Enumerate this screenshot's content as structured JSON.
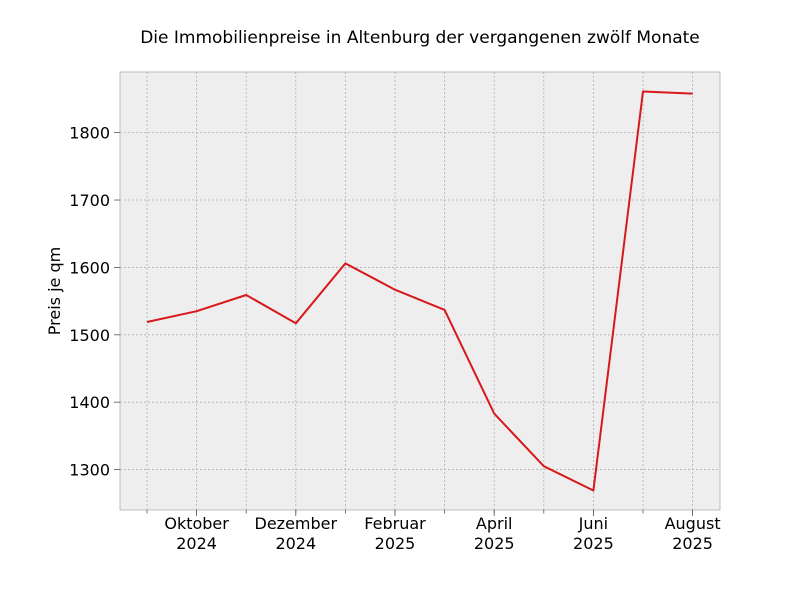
{
  "chart_data": {
    "type": "line",
    "title": "Die Immobilienpreise in Altenburg der vergangenen zwölf Monate",
    "xlabel": "",
    "ylabel": "Preis je qm",
    "x": [
      "2024-09",
      "2024-10",
      "2024-11",
      "2024-12",
      "2025-01",
      "2025-02",
      "2025-03",
      "2025-04",
      "2025-05",
      "2025-06",
      "2025-07",
      "2025-08"
    ],
    "series": [
      {
        "values": [
          1519,
          1535,
          1559,
          1517,
          1606,
          1567,
          1537,
          1383,
          1305,
          1269,
          1861,
          1858
        ],
        "color": "#d7191c"
      }
    ],
    "x_ticks": [
      {
        "index": 1,
        "line1": "Oktober",
        "line2": "2024"
      },
      {
        "index": 3,
        "line1": "Dezember",
        "line2": "2024"
      },
      {
        "index": 5,
        "line1": "Februar",
        "line2": "2025"
      },
      {
        "index": 7,
        "line1": "April",
        "line2": "2025"
      },
      {
        "index": 9,
        "line1": "Juni",
        "line2": "2025"
      },
      {
        "index": 11,
        "line1": "August",
        "line2": "2025"
      }
    ],
    "y_ticks": [
      1300,
      1400,
      1500,
      1600,
      1700,
      1800
    ],
    "ylim": [
      1240,
      1890
    ],
    "grid": true,
    "background": "#eeeeee"
  }
}
